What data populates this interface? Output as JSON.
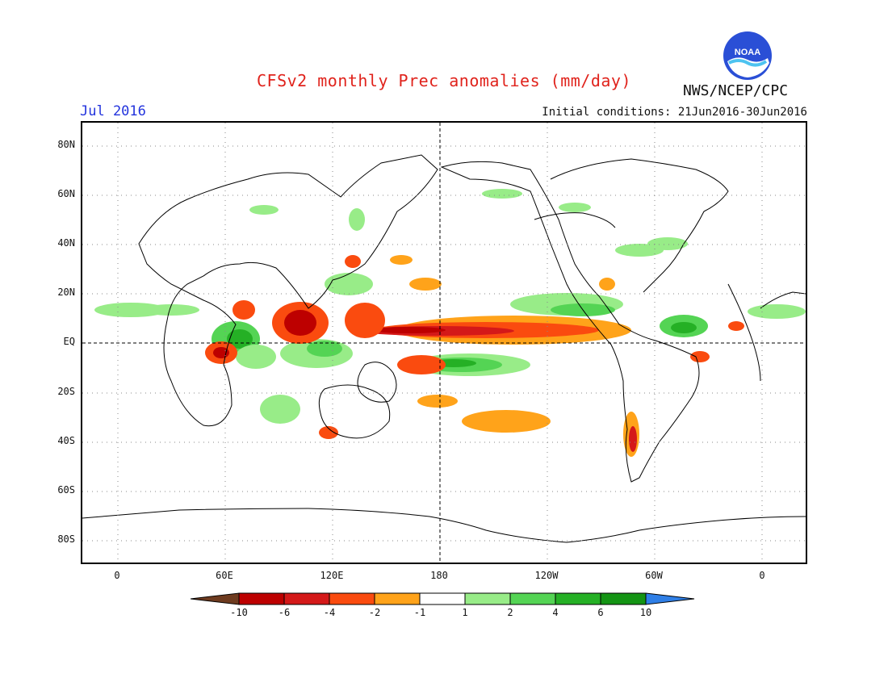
{
  "header": {
    "title": "CFSv2 monthly Prec anomalies (mm/day)",
    "month": "Jul 2016",
    "initial_conditions": "Initial conditions: 21Jun2016-30Jun2016",
    "agency": "NWS/NCEP/CPC",
    "logo_text": "NOAA"
  },
  "map": {
    "projection": "cylindrical equidistant",
    "lat_ticks": [
      "80N",
      "60N",
      "40N",
      "20N",
      "EQ",
      "20S",
      "40S",
      "60S",
      "80S"
    ],
    "lon_ticks": [
      "0",
      "60E",
      "120E",
      "180",
      "120W",
      "60W",
      "0"
    ],
    "grid": "dotted"
  },
  "legend": {
    "labels": [
      "-10",
      "-6",
      "-4",
      "-2",
      "-1",
      "1",
      "2",
      "4",
      "6",
      "10"
    ],
    "colors": [
      "#6e3b1f",
      "#bd0000",
      "#d41919",
      "#fa4b0f",
      "#ffa31a",
      "#ffffff",
      "#98ec88",
      "#54d454",
      "#25b025",
      "#149414",
      "#2f7fe6"
    ]
  },
  "colors": {
    "title": "#e0231c",
    "month": "#2233dd"
  }
}
